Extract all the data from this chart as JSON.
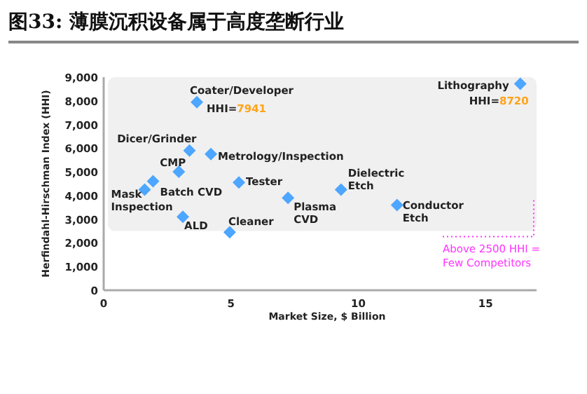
{
  "chart_data": {
    "type": "scatter",
    "title": "图33: 薄膜沉积设备属于高度垄断行业",
    "xlabel": "Market Size, $ Billion",
    "ylabel": "Herfindahl-Hirschman Index (HHI)",
    "series": [
      {
        "color": "#4da6ff",
        "x": [
          3.66,
          3.37,
          2.95,
          4.21,
          1.94,
          1.61,
          3.11,
          4.95,
          5.31,
          7.24,
          9.32,
          11.52,
          16.36
        ],
        "values": [
          7941,
          5900,
          5000,
          5750,
          4600,
          4250,
          3100,
          2450,
          4550,
          3900,
          4250,
          3600,
          8720
        ]
      }
    ],
    "marker": "diamond",
    "grid": false,
    "xlim": [
      0,
      17
    ],
    "xticks": [
      0,
      5,
      10,
      15
    ],
    "ylim": [
      0,
      9000
    ],
    "yticks": [
      0,
      {
        "value": 1000,
        "label": "1,000"
      },
      {
        "value": 2000,
        "label": "2,000"
      },
      {
        "value": 3000,
        "label": "3,000"
      },
      {
        "value": 4000,
        "label": "4,000"
      },
      {
        "value": 5000,
        "label": "5,000"
      },
      {
        "value": 6000,
        "label": "6,000"
      },
      {
        "value": 7000,
        "label": "7,000"
      },
      {
        "value": 8000,
        "label": "8,000"
      },
      {
        "value": 9000,
        "label": "9,000"
      }
    ],
    "bands": [
      {
        "axis": "y",
        "from": 2500,
        "to": 9000,
        "label": "Above 2500 HHI = Few Competitors",
        "color": "#f0f0f0"
      }
    ],
    "annotations": [
      {
        "text": "Coater/Developer",
        "x": 3.66,
        "y": 7941
      },
      {
        "text": "Dicer/Grinder",
        "x": 3.37,
        "y": 5900
      },
      {
        "text": "CMP",
        "x": 2.95,
        "y": 5000
      },
      {
        "text": "Metrology/Inspection",
        "x": 4.21,
        "y": 5750
      },
      {
        "text": "Batch CVD",
        "x": 1.94,
        "y": 4600
      },
      {
        "text": "Mask Inspection",
        "x": 1.61,
        "y": 4250
      },
      {
        "text": "ALD",
        "x": 3.11,
        "y": 3100
      },
      {
        "text": "Cleaner",
        "x": 4.95,
        "y": 2450
      },
      {
        "text": "Tester",
        "x": 5.31,
        "y": 4550
      },
      {
        "text": "Plasma CVD",
        "x": 7.24,
        "y": 3900
      },
      {
        "text": "Dielectric Etch",
        "x": 9.32,
        "y": 4250
      },
      {
        "text": "Conductor Etch",
        "x": 11.52,
        "y": 3600
      },
      {
        "text": "Lithography",
        "x": 16.36,
        "y": 8720
      },
      {
        "text": "HHI=7941",
        "x": 3.66,
        "y": 7941
      },
      {
        "text": "HHI=8720",
        "x": 16.36,
        "y": 8720
      }
    ]
  }
}
